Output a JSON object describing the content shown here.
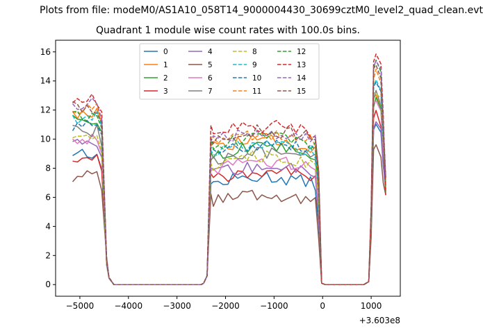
{
  "header": {
    "file_title": "Plots from file: modeM0/AS1A10_058T14_9000004430_30699cztM0_level2_quad_clean.evt",
    "plot_title": "Quadrant 1 module wise count rates with 100.0s bins."
  },
  "chart_data": {
    "type": "line",
    "title": "Quadrant 1 module wise count rates with 100.0s bins.",
    "xlabel": "",
    "ylabel": "",
    "x_offset_label": "+3.603e8",
    "xlim": [
      -5500,
      1600
    ],
    "ylim": [
      -0.8,
      16.8
    ],
    "xticks": [
      -5000,
      -4000,
      -3000,
      -2000,
      -1000,
      0,
      1000
    ],
    "xtick_labels": [
      "−5000",
      "−4000",
      "−3000",
      "−2000",
      "−1000",
      "0",
      "1000"
    ],
    "yticks": [
      0,
      2,
      4,
      6,
      8,
      10,
      12,
      14,
      16
    ],
    "ytick_labels": [
      "0",
      "2",
      "4",
      "6",
      "8",
      "10",
      "12",
      "14",
      "16"
    ],
    "grid": false,
    "legend_position": "top-center",
    "legend_columns": 4,
    "segments": {
      "seg1_x": [
        -5150,
        -4650
      ],
      "seg1_drop_x": [
        -4550,
        -4450,
        -4400,
        -4300
      ],
      "seg2_x": [
        -2250,
        -150
      ],
      "seg2_rise_x": [
        -2450,
        -2380,
        -2300
      ],
      "seg3_x": [
        1050,
        1300
      ],
      "seg3_rise_x": [
        950,
        1000
      ]
    },
    "series": [
      {
        "name": "0",
        "color": "#1f77b4",
        "dash": "solid",
        "seg1": 9.1,
        "seg2": 6.9,
        "seg3": 10.8
      },
      {
        "name": "1",
        "color": "#ff7f0e",
        "dash": "solid",
        "seg1": 11.8,
        "seg2": 9.4,
        "seg3": 12.7
      },
      {
        "name": "2",
        "color": "#2ca02c",
        "dash": "solid",
        "seg1": 11.2,
        "seg2": 8.9,
        "seg3": 12.4
      },
      {
        "name": "3",
        "color": "#d62728",
        "dash": "solid",
        "seg1": 8.6,
        "seg2": 7.3,
        "seg3": 11.4
      },
      {
        "name": "4",
        "color": "#9467bd",
        "dash": "solid",
        "seg1": 9.6,
        "seg2": 7.6,
        "seg3": 11.0
      },
      {
        "name": "5",
        "color": "#8c564b",
        "dash": "solid",
        "seg1": 7.4,
        "seg2": 5.7,
        "seg3": 9.3
      },
      {
        "name": "6",
        "color": "#e377c2",
        "dash": "solid",
        "seg1": 10.0,
        "seg2": 8.0,
        "seg3": 12.2
      },
      {
        "name": "7",
        "color": "#7f7f7f",
        "dash": "solid",
        "seg1": 10.6,
        "seg2": 8.6,
        "seg3": 12.8
      },
      {
        "name": "8",
        "color": "#bcbd22",
        "dash": "dashed",
        "seg1": 10.3,
        "seg2": 8.3,
        "seg3": 13.0
      },
      {
        "name": "9",
        "color": "#17becf",
        "dash": "dashed",
        "seg1": 11.5,
        "seg2": 9.1,
        "seg3": 13.8
      },
      {
        "name": "10",
        "color": "#1f77b4",
        "dash": "dashed",
        "seg1": 11.0,
        "seg2": 9.2,
        "seg3": 13.5
      },
      {
        "name": "11",
        "color": "#ff7f0e",
        "dash": "dashed",
        "seg1": 12.0,
        "seg2": 9.8,
        "seg3": 14.3
      },
      {
        "name": "12",
        "color": "#2ca02c",
        "dash": "dashed",
        "seg1": 11.6,
        "seg2": 9.6,
        "seg3": 14.8
      },
      {
        "name": "13",
        "color": "#d62728",
        "dash": "dashed",
        "seg1": 12.8,
        "seg2": 10.4,
        "seg3": 15.6
      },
      {
        "name": "14",
        "color": "#9467bd",
        "dash": "dashed",
        "seg1": 12.4,
        "seg2": 10.0,
        "seg3": 15.0
      },
      {
        "name": "15",
        "color": "#8c564b",
        "dash": "dashed",
        "seg1": 12.2,
        "seg2": 10.1,
        "seg3": 14.6
      }
    ]
  }
}
